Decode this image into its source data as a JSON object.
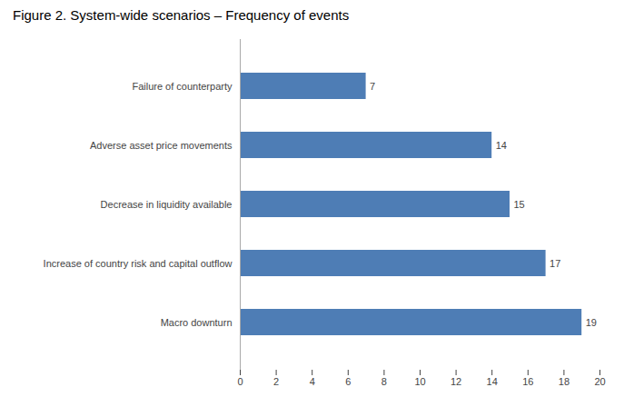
{
  "chart_data": {
    "type": "bar",
    "orientation": "horizontal",
    "title": "Figure 2. System-wide scenarios – Frequency of events",
    "categories": [
      "Macro downturn",
      "Increase of country risk and capital outflow",
      "Decrease in liquidity available",
      "Adverse asset price movements",
      "Failure of counterparty"
    ],
    "values": [
      19,
      17,
      15,
      14,
      7
    ],
    "color": "#4e7db5",
    "xlim": [
      0,
      20
    ],
    "xticks": [
      0,
      2,
      4,
      6,
      8,
      10,
      12,
      14,
      16,
      18,
      20
    ],
    "data_labels": true,
    "grid": false
  }
}
